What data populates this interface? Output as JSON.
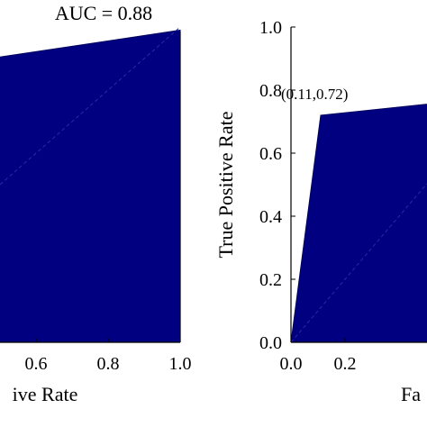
{
  "chart_data": [
    {
      "type": "area",
      "title": "AUC = 0.88",
      "xlabel": "ive Rate",
      "ylabel": "",
      "xlim": [
        0.4,
        1.0
      ],
      "ylim": [
        0.0,
        1.0
      ],
      "x_ticks": [
        "0.6",
        "0.8",
        "1.0"
      ],
      "y_ticks": [],
      "series": [
        {
          "x": [
            0.0,
            1.0,
            1.0
          ],
          "y": [
            0.82,
            0.99,
            0.0
          ]
        }
      ],
      "diagonal": true,
      "fill_color": "#000080"
    },
    {
      "type": "area",
      "title": "",
      "xlabel": "Fa",
      "ylabel": "True Positive Rate",
      "xlim": [
        0.0,
        1.0
      ],
      "ylim": [
        0.0,
        1.0
      ],
      "x_ticks": [
        "0.0",
        "0.2"
      ],
      "y_ticks": [
        "0.0",
        "0.2",
        "0.4",
        "0.6",
        "0.8",
        "1.0"
      ],
      "series": [
        {
          "x": [
            0.0,
            0.11,
            1.0
          ],
          "y": [
            0.0,
            0.72,
            0.8
          ]
        }
      ],
      "annotation": {
        "text": "(0.11,0.72)",
        "x": 0.11,
        "y": 0.72
      },
      "diagonal": true,
      "fill_color": "#000080"
    }
  ]
}
